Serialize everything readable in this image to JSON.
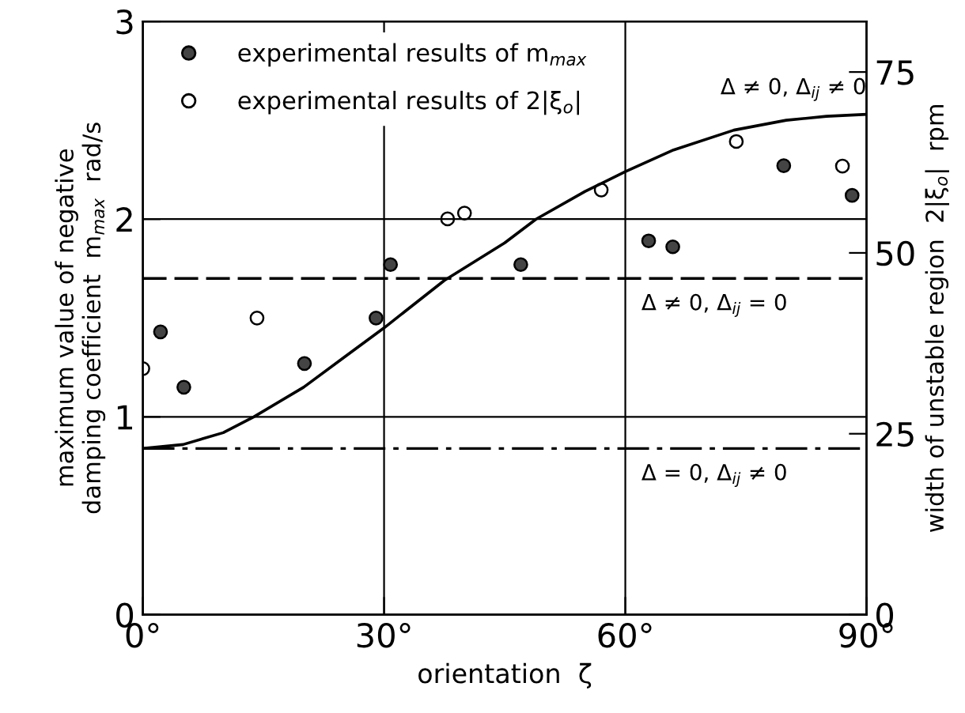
{
  "chart_data": {
    "type": "scatter",
    "xlabel": "orientation  ζ",
    "ylabel": "maximum value of negative\ndamping coefficient  m$_{max}$  rad/s",
    "y2label": "width of unstable region  2|ξ$_{o}$|  rpm",
    "xlim": [
      0,
      90
    ],
    "xticks": [
      {
        "value": 0,
        "label": "0°"
      },
      {
        "value": 30,
        "label": "30°"
      },
      {
        "value": 60,
        "label": "60°"
      },
      {
        "value": 90,
        "label": "90°"
      }
    ],
    "ylim": [
      0,
      3
    ],
    "yticks": [
      0,
      1,
      2,
      3
    ],
    "y2lim": [
      0,
      82
    ],
    "y2ticks": [
      0,
      25,
      50,
      75
    ],
    "grid": true,
    "legend": "top left",
    "series": [
      {
        "name": "experimental results of m$_{max}$",
        "color": "#444444",
        "marker": "circle",
        "x": [
          2.2,
          5.1,
          20.1,
          29,
          30.8,
          47,
          62.9,
          65.9,
          79.7,
          88.2
        ],
        "values": [
          1.43,
          1.15,
          1.27,
          1.5,
          1.77,
          1.77,
          1.89,
          1.86,
          2.27,
          2.12
        ]
      },
      {
        "name": "experimental results of 2|ξ$_{o}$|",
        "color": "#ffffff",
        "marker": "circle",
        "axis": "y2",
        "x": [
          0,
          14.2,
          37.9,
          40,
          57,
          73.8,
          87
        ],
        "values": [
          34,
          41,
          54.7,
          55.5,
          58.7,
          65.4,
          62
        ]
      },
      {
        "name": "Δ ≠ 0, Δ$_{ij}$ ≠ 0",
        "type": "line",
        "color": "#000000",
        "marker": "none",
        "line_style": "solid",
        "x": [
          0,
          5,
          10,
          13.8,
          20,
          25,
          30,
          37.5,
          45,
          48.9,
          55,
          60,
          66,
          73.5,
          80,
          85,
          90
        ],
        "values": [
          0.84,
          0.86,
          0.92,
          1.0,
          1.15,
          1.3,
          1.45,
          1.69,
          1.88,
          2.0,
          2.14,
          2.24,
          2.35,
          2.45,
          2.5,
          2.52,
          2.53
        ]
      }
    ],
    "ref_lines": [
      {
        "axis": "y",
        "value": 1.7,
        "line_style": "dashed",
        "color": "#000000"
      },
      {
        "axis": "y",
        "value": 0.84,
        "line_style": "dashdot",
        "color": "#000000"
      }
    ],
    "annotations": [
      {
        "text": "Δ ≠ 0, Δ$_{ij}$ = 0",
        "x": 62,
        "y": 1.7
      },
      {
        "text": "Δ = 0, Δ$_{ij}$ ≠ 0",
        "x": 62,
        "y": 0.84
      }
    ]
  }
}
